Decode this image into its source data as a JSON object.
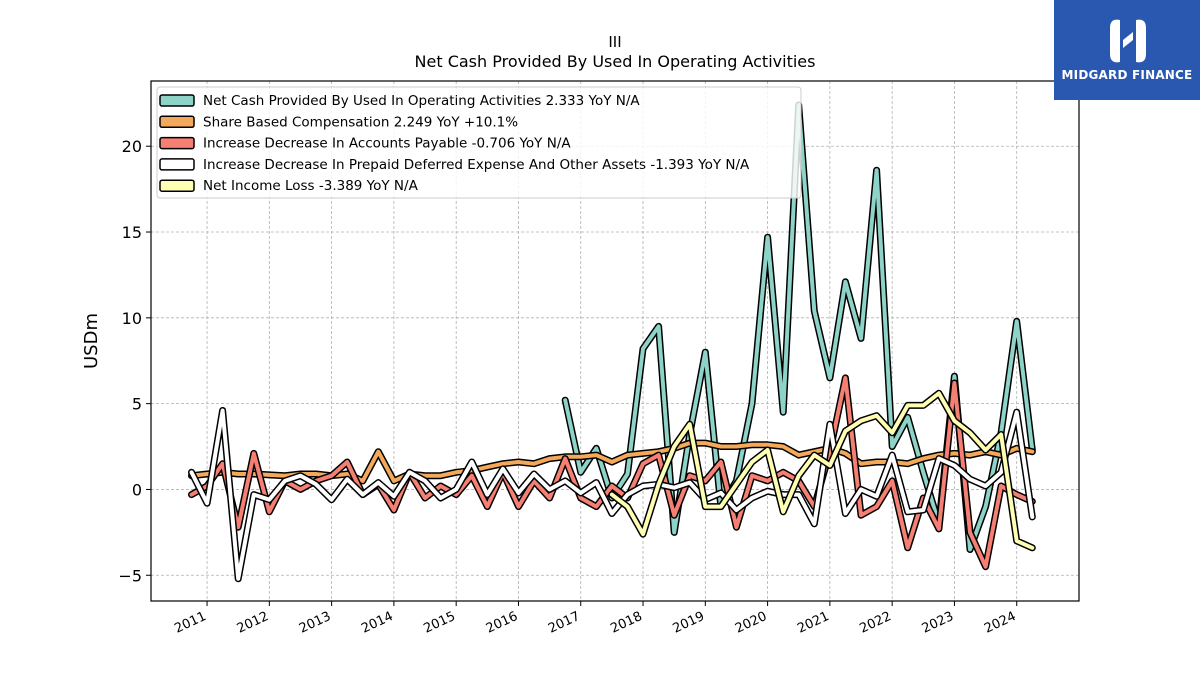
{
  "title_line1": "III",
  "title_line2": "Net Cash Provided By Used In Operating Activities",
  "brand": {
    "name": "MIDGARD FINANCE",
    "color": "#2a57b0"
  },
  "chart_data": {
    "type": "line",
    "ylabel": "USDm",
    "xlim": [
      2010.1,
      2025.0
    ],
    "ylim": [
      -6.5,
      23.8
    ],
    "yticks": [
      -5,
      0,
      5,
      10,
      15,
      20
    ],
    "xticks": [
      "2011",
      "2012",
      "2013",
      "2014",
      "2015",
      "2016",
      "2017",
      "2018",
      "2019",
      "2020",
      "2021",
      "2022",
      "2023",
      "2024"
    ],
    "grid": true,
    "legend_position": "top-left",
    "series": [
      {
        "name": "Net Cash Provided By Used In Operating Activities",
        "legend": "Net Cash Provided By Used In Operating Activities  2.333 YoY N/A",
        "color": "#8dd3c7",
        "x": [
          2016.75,
          2017.0,
          2017.25,
          2017.5,
          2017.75,
          2018.0,
          2018.25,
          2018.5,
          2018.75,
          2019.0,
          2019.25,
          2019.5,
          2019.75,
          2020.0,
          2020.25,
          2020.5,
          2020.75,
          2021.0,
          2021.25,
          2021.5,
          2021.75,
          2022.0,
          2022.25,
          2022.5,
          2022.75,
          2023.0,
          2023.25,
          2023.5,
          2023.75,
          2024.0,
          2024.25
        ],
        "y": [
          5.2,
          1.0,
          2.4,
          -0.5,
          0.9,
          8.2,
          9.5,
          -2.5,
          3.2,
          8.0,
          -1.0,
          0.5,
          5.0,
          14.7,
          4.5,
          22.4,
          10.4,
          6.5,
          12.1,
          8.8,
          18.6,
          2.5,
          4.2,
          1.0,
          -2.0,
          6.6,
          -3.5,
          -1.0,
          3.3,
          9.8,
          2.3
        ]
      },
      {
        "name": "Share Based Compensation",
        "legend": "Share Based Compensation  2.249 YoY +10.1%",
        "color": "#f4a95a",
        "x": [
          2010.75,
          2011.0,
          2011.25,
          2011.5,
          2011.75,
          2012.0,
          2012.25,
          2012.5,
          2012.75,
          2013.0,
          2013.25,
          2013.5,
          2013.75,
          2014.0,
          2014.25,
          2014.5,
          2014.75,
          2015.0,
          2015.25,
          2015.5,
          2015.75,
          2016.0,
          2016.25,
          2016.5,
          2016.75,
          2017.0,
          2017.25,
          2017.5,
          2017.75,
          2018.0,
          2018.25,
          2018.5,
          2018.75,
          2019.0,
          2019.25,
          2019.5,
          2019.75,
          2020.0,
          2020.25,
          2020.5,
          2020.75,
          2021.0,
          2021.25,
          2021.5,
          2021.75,
          2022.0,
          2022.25,
          2022.5,
          2022.75,
          2023.0,
          2023.25,
          2023.5,
          2023.75,
          2024.0,
          2024.25
        ],
        "y": [
          0.8,
          0.9,
          1.0,
          0.9,
          0.9,
          0.85,
          0.8,
          0.9,
          0.9,
          0.8,
          0.9,
          0.5,
          2.2,
          0.5,
          0.9,
          0.8,
          0.8,
          1.0,
          1.1,
          1.3,
          1.5,
          1.6,
          1.5,
          1.8,
          1.9,
          1.9,
          2.0,
          1.6,
          2.0,
          2.1,
          2.2,
          2.4,
          2.7,
          2.7,
          2.5,
          2.5,
          2.6,
          2.6,
          2.5,
          2.0,
          2.2,
          2.4,
          2.1,
          1.5,
          1.6,
          1.6,
          1.5,
          1.8,
          2.0,
          2.1,
          2.0,
          2.2,
          2.0,
          2.4,
          2.2
        ]
      },
      {
        "name": "Increase Decrease In Accounts Payable",
        "legend": "Increase Decrease In Accounts Payable  -0.706 YoY N/A",
        "color": "#f47f72",
        "x": [
          2010.75,
          2011.0,
          2011.25,
          2011.5,
          2011.75,
          2012.0,
          2012.25,
          2012.5,
          2012.75,
          2013.0,
          2013.25,
          2013.5,
          2013.75,
          2014.0,
          2014.25,
          2014.5,
          2014.75,
          2015.0,
          2015.25,
          2015.5,
          2015.75,
          2016.0,
          2016.25,
          2016.5,
          2016.75,
          2017.0,
          2017.25,
          2017.5,
          2017.75,
          2018.0,
          2018.25,
          2018.5,
          2018.75,
          2019.0,
          2019.25,
          2019.5,
          2019.75,
          2020.0,
          2020.25,
          2020.5,
          2020.75,
          2021.0,
          2021.25,
          2021.5,
          2021.75,
          2022.0,
          2022.25,
          2022.5,
          2022.75,
          2023.0,
          2023.25,
          2023.5,
          2023.75,
          2024.0,
          2024.25
        ],
        "y": [
          -0.3,
          0.2,
          1.5,
          -2.2,
          2.1,
          -1.3,
          0.5,
          0.0,
          0.5,
          0.8,
          1.6,
          -0.3,
          0.3,
          -1.2,
          1.0,
          -0.5,
          0.2,
          -0.3,
          0.8,
          -1.0,
          1.0,
          -1.0,
          0.5,
          -0.5,
          1.8,
          -0.5,
          -1.0,
          0.2,
          -0.5,
          1.5,
          2.0,
          -1.5,
          0.8,
          0.5,
          1.6,
          -2.2,
          0.8,
          0.5,
          1.0,
          0.5,
          -1.0,
          2.2,
          6.5,
          -1.5,
          -1.0,
          0.5,
          -3.4,
          -0.5,
          -2.3,
          6.2,
          -2.5,
          -4.5,
          0.2,
          -0.3,
          -0.7
        ]
      },
      {
        "name": "Increase Decrease In Prepaid Deferred Expense And Other Assets",
        "legend": "Increase Decrease In Prepaid Deferred Expense And Other Assets  -1.393 YoY N/A",
        "color": "#ffffff",
        "x": [
          2010.75,
          2011.0,
          2011.25,
          2011.5,
          2011.75,
          2012.0,
          2012.25,
          2012.5,
          2012.75,
          2013.0,
          2013.25,
          2013.5,
          2013.75,
          2014.0,
          2014.25,
          2014.5,
          2014.75,
          2015.0,
          2015.25,
          2015.5,
          2015.75,
          2016.0,
          2016.25,
          2016.5,
          2016.75,
          2017.0,
          2017.25,
          2017.5,
          2017.75,
          2018.0,
          2018.25,
          2018.5,
          2018.75,
          2019.0,
          2019.25,
          2019.5,
          2019.75,
          2020.0,
          2020.25,
          2020.5,
          2020.75,
          2021.0,
          2021.25,
          2021.5,
          2021.75,
          2022.0,
          2022.25,
          2022.5,
          2022.75,
          2023.0,
          2023.25,
          2023.5,
          2023.75,
          2024.0,
          2024.25
        ],
        "y": [
          1.0,
          -0.8,
          4.6,
          -5.2,
          -0.3,
          -0.6,
          0.5,
          0.8,
          0.3,
          -0.6,
          0.6,
          -0.3,
          0.4,
          -0.4,
          1.0,
          0.5,
          -0.5,
          0.0,
          1.6,
          -0.3,
          1.2,
          -0.2,
          0.9,
          0.0,
          0.5,
          -0.2,
          0.4,
          -1.4,
          -0.3,
          0.2,
          0.3,
          0.1,
          0.4,
          -0.6,
          -0.2,
          -1.2,
          -0.5,
          -0.1,
          -0.3,
          -0.3,
          -2.0,
          3.8,
          -1.4,
          0.0,
          -0.4,
          2.0,
          -1.3,
          -1.2,
          1.8,
          1.4,
          0.6,
          0.2,
          1.0,
          4.5,
          -1.6
        ]
      },
      {
        "name": "Net Income Loss",
        "legend": "Net Income Loss  -3.389 YoY N/A",
        "color": "#ffffb3",
        "x": [
          2017.5,
          2017.75,
          2018.0,
          2018.25,
          2018.5,
          2018.75,
          2019.0,
          2019.25,
          2019.5,
          2019.75,
          2020.0,
          2020.25,
          2020.5,
          2020.75,
          2021.0,
          2021.25,
          2021.5,
          2021.75,
          2022.0,
          2022.25,
          2022.5,
          2022.75,
          2023.0,
          2023.25,
          2023.5,
          2023.75,
          2024.0,
          2024.25
        ],
        "y": [
          -0.3,
          -1.0,
          -2.6,
          0.3,
          2.5,
          3.8,
          -1.0,
          -1.0,
          0.3,
          1.6,
          2.3,
          -1.3,
          0.8,
          2.0,
          1.4,
          3.4,
          4.0,
          4.3,
          3.3,
          4.9,
          4.9,
          5.6,
          4.0,
          3.3,
          2.3,
          3.2,
          -3.0,
          -3.4
        ]
      }
    ]
  }
}
